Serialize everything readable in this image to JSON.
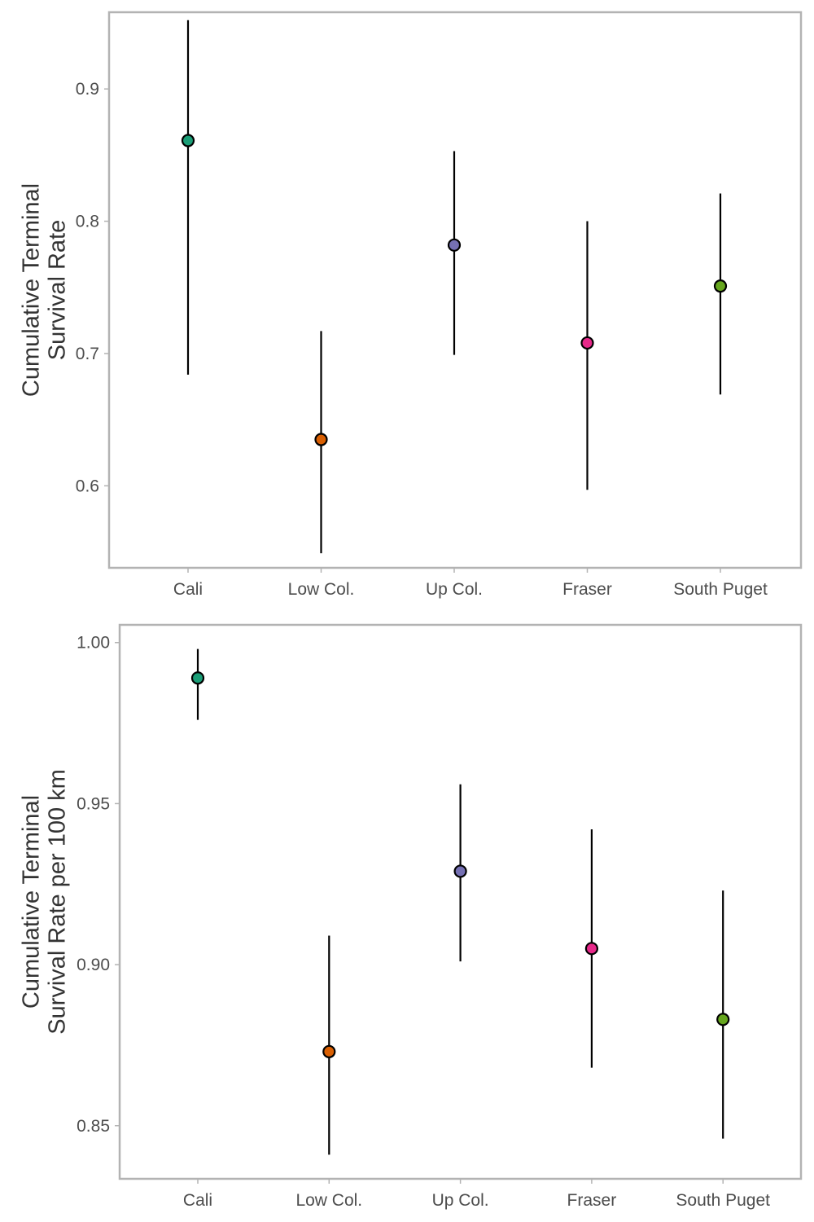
{
  "chart_data": [
    {
      "type": "pointrange",
      "title": "",
      "xlabel": "",
      "ylabel_lines": [
        "Cumulative Terminal",
        "Survival Rate"
      ],
      "categories": [
        "Cali",
        "Low Col.",
        "Up Col.",
        "Fraser",
        "South Puget"
      ],
      "yticks": [
        0.6,
        0.7,
        0.8,
        0.9
      ],
      "ytick_labels": [
        "0.6",
        "0.7",
        "0.8",
        "0.9"
      ],
      "ylim": [
        0.538,
        0.958
      ],
      "grid": false,
      "legend": "none",
      "points": [
        {
          "category": "Cali",
          "value": 0.861,
          "lower": 0.684,
          "upper": 0.952,
          "color": "#1b9e77"
        },
        {
          "category": "Low Col.",
          "value": 0.635,
          "lower": 0.549,
          "upper": 0.717,
          "color": "#d95f02"
        },
        {
          "category": "Up Col.",
          "value": 0.782,
          "lower": 0.699,
          "upper": 0.853,
          "color": "#7570b3"
        },
        {
          "category": "Fraser",
          "value": 0.708,
          "lower": 0.597,
          "upper": 0.8,
          "color": "#e7298a"
        },
        {
          "category": "South Puget",
          "value": 0.751,
          "lower": 0.669,
          "upper": 0.821,
          "color": "#66a61e"
        }
      ]
    },
    {
      "type": "pointrange",
      "title": "",
      "xlabel": "",
      "ylabel_lines": [
        "Cumulative Terminal",
        "Survival Rate per 100 km"
      ],
      "categories": [
        "Cali",
        "Low Col.",
        "Up Col.",
        "Fraser",
        "South Puget"
      ],
      "yticks": [
        0.85,
        0.9,
        0.95,
        1.0
      ],
      "ytick_labels": [
        "0.85",
        "0.90",
        "0.95",
        "1.00"
      ],
      "ylim": [
        0.8335,
        1.0055
      ],
      "grid": false,
      "legend": "none",
      "points": [
        {
          "category": "Cali",
          "value": 0.989,
          "lower": 0.976,
          "upper": 0.998,
          "color": "#1b9e77"
        },
        {
          "category": "Low Col.",
          "value": 0.873,
          "lower": 0.841,
          "upper": 0.909,
          "color": "#d95f02"
        },
        {
          "category": "Up Col.",
          "value": 0.929,
          "lower": 0.901,
          "upper": 0.956,
          "color": "#7570b3"
        },
        {
          "category": "Fraser",
          "value": 0.905,
          "lower": 0.868,
          "upper": 0.942,
          "color": "#e7298a"
        },
        {
          "category": "South Puget",
          "value": 0.883,
          "lower": 0.846,
          "upper": 0.923,
          "color": "#66a61e"
        }
      ]
    }
  ]
}
